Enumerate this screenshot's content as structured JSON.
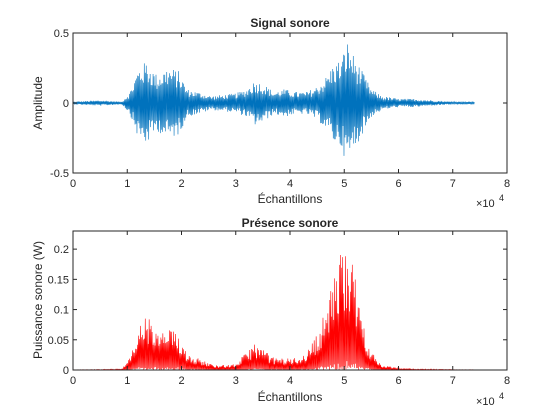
{
  "figure": {
    "background": "#ffffff"
  },
  "chart_data": [
    {
      "type": "line",
      "title": "Signal sonore",
      "xlabel": "Échantillons",
      "ylabel": "Amplitude",
      "x_exponent_label": "×10",
      "x_exponent": "4",
      "xlim": [
        0,
        80000
      ],
      "ylim": [
        -0.5,
        0.5
      ],
      "xticks": [
        0,
        10000,
        20000,
        30000,
        40000,
        50000,
        60000,
        70000,
        80000
      ],
      "xtick_labels": [
        "0",
        "1",
        "2",
        "3",
        "4",
        "5",
        "6",
        "7",
        "8"
      ],
      "yticks": [
        -0.5,
        0,
        0.5
      ],
      "ytick_labels": [
        "-0.5",
        "0",
        "0.5"
      ],
      "grid": false,
      "color": "#0072BD",
      "series": [
        {
          "envelope_x": [
            0,
            5000,
            9000,
            10500,
            12000,
            13500,
            15500,
            17500,
            19500,
            21000,
            23000,
            25500,
            28000,
            30000,
            32000,
            33500,
            35000,
            37000,
            39000,
            41000,
            43000,
            45000,
            46500,
            48000,
            49500,
            50500,
            51500,
            53000,
            55000,
            57000,
            60000,
            63000,
            66000,
            70000,
            74000
          ],
          "envelope_y": [
            0.01,
            0.02,
            0.01,
            0.08,
            0.25,
            0.3,
            0.2,
            0.26,
            0.23,
            0.1,
            0.08,
            0.05,
            0.06,
            0.07,
            0.1,
            0.16,
            0.14,
            0.08,
            0.1,
            0.08,
            0.08,
            0.12,
            0.18,
            0.28,
            0.32,
            0.45,
            0.36,
            0.25,
            0.1,
            0.05,
            0.03,
            0.03,
            0.02,
            0.01,
            0.01
          ]
        }
      ]
    },
    {
      "type": "line",
      "title": "Présence sonore",
      "xlabel": "Échantillons",
      "ylabel": "Puissance sonore (W)",
      "x_exponent_label": "×10",
      "x_exponent": "4",
      "xlim": [
        0,
        80000
      ],
      "ylim": [
        0,
        0.23
      ],
      "xticks": [
        0,
        10000,
        20000,
        30000,
        40000,
        50000,
        60000,
        70000,
        80000
      ],
      "xtick_labels": [
        "0",
        "1",
        "2",
        "3",
        "4",
        "5",
        "6",
        "7",
        "8"
      ],
      "yticks": [
        0,
        0.05,
        0.1,
        0.15,
        0.2
      ],
      "ytick_labels": [
        "0",
        "0.05",
        "0.1",
        "0.15",
        "0.2"
      ],
      "grid": false,
      "color": "#FF0000",
      "series": [
        {
          "envelope_x": [
            0,
            5000,
            9000,
            10500,
            12000,
            13500,
            15500,
            17500,
            19500,
            21000,
            23000,
            25500,
            28000,
            30000,
            32000,
            33500,
            35000,
            37000,
            39000,
            41000,
            43000,
            45000,
            46500,
            48000,
            49500,
            50500,
            51500,
            53000,
            55000,
            57000,
            60000,
            63000,
            66000,
            70000,
            74000
          ],
          "envelope_y": [
            0.0005,
            0.001,
            0.002,
            0.02,
            0.07,
            0.095,
            0.06,
            0.07,
            0.06,
            0.03,
            0.02,
            0.01,
            0.008,
            0.01,
            0.03,
            0.045,
            0.035,
            0.02,
            0.02,
            0.02,
            0.03,
            0.06,
            0.1,
            0.15,
            0.2,
            0.23,
            0.18,
            0.1,
            0.03,
            0.008,
            0.003,
            0.002,
            0.0015,
            0.001,
            0.0005
          ]
        }
      ]
    }
  ]
}
